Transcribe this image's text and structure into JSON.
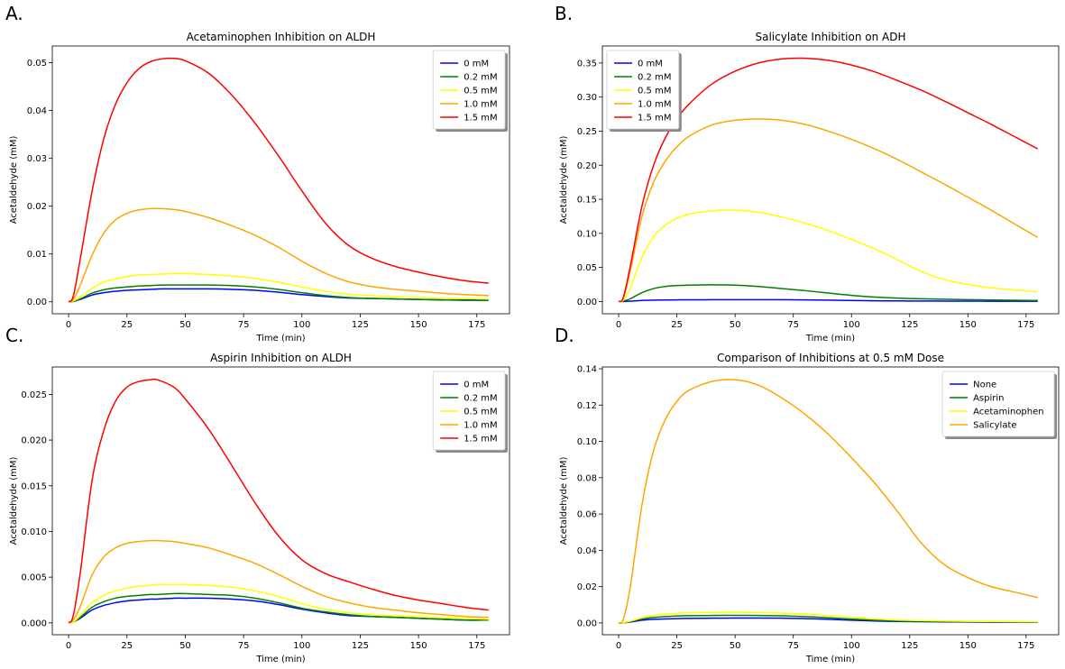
{
  "chart_data": [
    {
      "panel_label": "A.",
      "type": "line",
      "title": "Acetaminophen Inhibition on ALDH",
      "xlabel": "Time (min)",
      "ylabel": "Acetaldehyde (mM)",
      "xlim": [
        -7,
        189
      ],
      "ylim": [
        -0.0025,
        0.0535
      ],
      "xticks": [
        0,
        25,
        50,
        75,
        100,
        125,
        150,
        175
      ],
      "yticks": [
        0.0,
        0.01,
        0.02,
        0.03,
        0.04,
        0.05
      ],
      "ytick_labels": [
        "0.00",
        "0.01",
        "0.02",
        "0.03",
        "0.04",
        "0.05"
      ],
      "legend_loc": "upper right",
      "x": [
        0,
        2,
        5,
        10,
        15,
        20,
        25,
        30,
        35,
        40,
        45,
        50,
        60,
        70,
        80,
        90,
        100,
        110,
        120,
        130,
        140,
        150,
        160,
        170,
        180
      ],
      "series": [
        {
          "name": "0 mM",
          "color": "#0000ff",
          "values": [
            0,
            0.0001,
            0.0005,
            0.0014,
            0.0019,
            0.0022,
            0.0024,
            0.0025,
            0.0026,
            0.0027,
            0.0027,
            0.0027,
            0.0027,
            0.0026,
            0.0024,
            0.002,
            0.0015,
            0.0011,
            0.0008,
            0.0007,
            0.0006,
            0.0005,
            0.0004,
            0.0004,
            0.0003
          ]
        },
        {
          "name": "0.2 mM",
          "color": "#008000",
          "values": [
            0,
            0.0001,
            0.0006,
            0.0018,
            0.0025,
            0.0029,
            0.0031,
            0.0033,
            0.0034,
            0.0035,
            0.0035,
            0.0035,
            0.0035,
            0.0034,
            0.0031,
            0.0026,
            0.0019,
            0.0013,
            0.0009,
            0.0007,
            0.0006,
            0.0005,
            0.0004,
            0.0003,
            0.0003
          ]
        },
        {
          "name": "0.5 mM",
          "color": "#ffff00",
          "values": [
            0,
            0.0002,
            0.001,
            0.0028,
            0.0041,
            0.0048,
            0.0053,
            0.0056,
            0.0057,
            0.0058,
            0.0059,
            0.0059,
            0.0057,
            0.0054,
            0.0049,
            0.0041,
            0.0031,
            0.0022,
            0.0016,
            0.0013,
            0.0011,
            0.0009,
            0.0008,
            0.0007,
            0.0006
          ]
        },
        {
          "name": "1.0 mM",
          "color": "#ffa500",
          "values": [
            0,
            0.0005,
            0.0035,
            0.0097,
            0.0143,
            0.0171,
            0.0185,
            0.0192,
            0.0195,
            0.0195,
            0.0193,
            0.0189,
            0.0176,
            0.0159,
            0.0139,
            0.0114,
            0.0085,
            0.006,
            0.0042,
            0.0032,
            0.0026,
            0.0022,
            0.0018,
            0.0015,
            0.0013
          ]
        },
        {
          "name": "1.5 mM",
          "color": "#ff0000",
          "values": [
            0,
            0.0012,
            0.009,
            0.023,
            0.034,
            0.0412,
            0.0458,
            0.0487,
            0.0502,
            0.0508,
            0.0509,
            0.0504,
            0.0478,
            0.0432,
            0.0373,
            0.0305,
            0.0232,
            0.0165,
            0.0118,
            0.0091,
            0.0074,
            0.0062,
            0.0052,
            0.0044,
            0.0039
          ]
        }
      ]
    },
    {
      "panel_label": "B.",
      "type": "line",
      "title": "Salicylate Inhibition on ADH",
      "xlabel": "Time (min)",
      "ylabel": "Acetaldehyde (mM)",
      "xlim": [
        -7,
        189
      ],
      "ylim": [
        -0.018,
        0.375
      ],
      "xticks": [
        0,
        25,
        50,
        75,
        100,
        125,
        150,
        175
      ],
      "yticks": [
        0.0,
        0.05,
        0.1,
        0.15,
        0.2,
        0.25,
        0.3,
        0.35
      ],
      "ytick_labels": [
        "0.00",
        "0.05",
        "0.10",
        "0.15",
        "0.20",
        "0.25",
        "0.30",
        "0.35"
      ],
      "legend_loc": "upper left",
      "x": [
        0,
        2,
        5,
        10,
        15,
        20,
        25,
        30,
        40,
        50,
        60,
        70,
        80,
        90,
        100,
        110,
        120,
        130,
        140,
        150,
        160,
        170,
        180
      ],
      "series": [
        {
          "name": "0 mM",
          "color": "#0000ff",
          "values": [
            0,
            0,
            0.0005,
            0.0015,
            0.002,
            0.0022,
            0.0024,
            0.0025,
            0.0026,
            0.0027,
            0.0027,
            0.0026,
            0.0024,
            0.002,
            0.0015,
            0.0011,
            0.0008,
            0.0007,
            0.0006,
            0.0005,
            0.0004,
            0.0004,
            0.0003
          ]
        },
        {
          "name": "0.2 mM",
          "color": "#008000",
          "values": [
            0,
            0.0005,
            0.004,
            0.013,
            0.019,
            0.022,
            0.0235,
            0.024,
            0.0245,
            0.024,
            0.022,
            0.019,
            0.016,
            0.0125,
            0.009,
            0.0065,
            0.005,
            0.004,
            0.0033,
            0.0027,
            0.0022,
            0.0018,
            0.0015
          ]
        },
        {
          "name": "0.5 mM",
          "color": "#ffff00",
          "values": [
            0,
            0.002,
            0.02,
            0.065,
            0.095,
            0.112,
            0.122,
            0.128,
            0.133,
            0.134,
            0.131,
            0.124,
            0.115,
            0.104,
            0.091,
            0.077,
            0.061,
            0.044,
            0.032,
            0.025,
            0.02,
            0.017,
            0.014
          ]
        },
        {
          "name": "1.0 mM",
          "color": "#ffa500",
          "values": [
            0,
            0.005,
            0.045,
            0.125,
            0.175,
            0.206,
            0.227,
            0.242,
            0.259,
            0.266,
            0.268,
            0.266,
            0.26,
            0.25,
            0.238,
            0.224,
            0.208,
            0.19,
            0.172,
            0.153,
            0.134,
            0.114,
            0.094
          ]
        },
        {
          "name": "1.5 mM",
          "color": "#ff0000",
          "values": [
            0,
            0.006,
            0.052,
            0.14,
            0.2,
            0.24,
            0.268,
            0.289,
            0.319,
            0.338,
            0.35,
            0.356,
            0.357,
            0.354,
            0.347,
            0.337,
            0.324,
            0.31,
            0.294,
            0.277,
            0.26,
            0.242,
            0.224
          ]
        }
      ]
    },
    {
      "panel_label": "C.",
      "type": "line",
      "title": "Aspirin Inhibition on ALDH",
      "xlabel": "Time (min)",
      "ylabel": "Acetaldehyde (mM)",
      "xlim": [
        -7,
        189
      ],
      "ylim": [
        -0.0013,
        0.028
      ],
      "xticks": [
        0,
        25,
        50,
        75,
        100,
        125,
        150,
        175
      ],
      "yticks": [
        0.0,
        0.005,
        0.01,
        0.015,
        0.02,
        0.025
      ],
      "ytick_labels": [
        "0.000",
        "0.005",
        "0.010",
        "0.015",
        "0.020",
        "0.025"
      ],
      "legend_loc": "upper right",
      "x": [
        0,
        2,
        5,
        10,
        15,
        20,
        25,
        30,
        35,
        38,
        45,
        50,
        60,
        70,
        80,
        90,
        100,
        110,
        120,
        130,
        140,
        150,
        160,
        170,
        180
      ],
      "series": [
        {
          "name": "0 mM",
          "color": "#0000ff",
          "values": [
            0,
            0.0001,
            0.0005,
            0.0014,
            0.0019,
            0.0022,
            0.0024,
            0.0025,
            0.0026,
            0.0026,
            0.0027,
            0.0027,
            0.0027,
            0.0026,
            0.0024,
            0.002,
            0.0015,
            0.0011,
            0.0008,
            0.0007,
            0.0006,
            0.0005,
            0.0004,
            0.0003,
            0.0003
          ]
        },
        {
          "name": "0.2 mM",
          "color": "#008000",
          "values": [
            0,
            0.0001,
            0.0006,
            0.0017,
            0.0023,
            0.0027,
            0.0029,
            0.003,
            0.0031,
            0.0031,
            0.0032,
            0.0032,
            0.0031,
            0.003,
            0.0027,
            0.0022,
            0.0016,
            0.0012,
            0.0009,
            0.0007,
            0.0006,
            0.0005,
            0.0004,
            0.0003,
            0.0003
          ]
        },
        {
          "name": "0.5 mM",
          "color": "#ffff00",
          "values": [
            0,
            0.0001,
            0.0008,
            0.0022,
            0.003,
            0.0035,
            0.0038,
            0.004,
            0.0041,
            0.0042,
            0.0042,
            0.0042,
            0.0041,
            0.0039,
            0.0035,
            0.0029,
            0.0021,
            0.0015,
            0.0011,
            0.0009,
            0.0008,
            0.0007,
            0.0006,
            0.0005,
            0.0004
          ]
        },
        {
          "name": "1.0 mM",
          "color": "#ffa500",
          "values": [
            0,
            0.0003,
            0.0018,
            0.0052,
            0.0072,
            0.0082,
            0.0087,
            0.0089,
            0.009,
            0.009,
            0.0089,
            0.0087,
            0.0082,
            0.0074,
            0.0065,
            0.0053,
            0.004,
            0.0029,
            0.0022,
            0.0017,
            0.0014,
            0.0011,
            0.0009,
            0.0007,
            0.0006
          ]
        },
        {
          "name": "1.5 mM",
          "color": "#ff0000",
          "values": [
            0,
            0.0008,
            0.0055,
            0.0155,
            0.021,
            0.0242,
            0.0258,
            0.0264,
            0.0266,
            0.0266,
            0.0258,
            0.0245,
            0.0212,
            0.0172,
            0.0131,
            0.0095,
            0.0069,
            0.0054,
            0.0045,
            0.0037,
            0.003,
            0.0025,
            0.0021,
            0.0017,
            0.0014
          ]
        }
      ]
    },
    {
      "panel_label": "D.",
      "type": "line",
      "title": "Comparison of Inhibitions at 0.5 mM Dose",
      "xlabel": "Time (min)",
      "ylabel": "Acetaldehyde (mM)",
      "xlim": [
        -7,
        189
      ],
      "ylim": [
        -0.0065,
        0.141
      ],
      "xticks": [
        0,
        25,
        50,
        75,
        100,
        125,
        150,
        175
      ],
      "yticks": [
        0.0,
        0.02,
        0.04,
        0.06,
        0.08,
        0.1,
        0.12,
        0.14
      ],
      "ytick_labels": [
        "0.00",
        "0.02",
        "0.04",
        "0.06",
        "0.08",
        "0.10",
        "0.12",
        "0.14"
      ],
      "legend_loc": "upper right",
      "x": [
        0,
        2,
        5,
        10,
        15,
        20,
        25,
        30,
        40,
        50,
        60,
        70,
        80,
        90,
        100,
        110,
        120,
        130,
        140,
        150,
        160,
        170,
        180
      ],
      "series": [
        {
          "name": "None",
          "color": "#0000ff",
          "values": [
            0,
            0.0001,
            0.0005,
            0.0015,
            0.002,
            0.0022,
            0.0024,
            0.0025,
            0.0026,
            0.0027,
            0.0027,
            0.0026,
            0.0024,
            0.002,
            0.0015,
            0.0011,
            0.0008,
            0.0007,
            0.0006,
            0.0005,
            0.0004,
            0.0004,
            0.0003
          ]
        },
        {
          "name": "Aspirin",
          "color": "#008000",
          "values": [
            0,
            0.0001,
            0.0008,
            0.0022,
            0.003,
            0.0035,
            0.0038,
            0.004,
            0.0041,
            0.0042,
            0.0041,
            0.0039,
            0.0035,
            0.0029,
            0.0021,
            0.0015,
            0.0011,
            0.0009,
            0.0008,
            0.0007,
            0.0006,
            0.0005,
            0.0004
          ]
        },
        {
          "name": "Acetaminophen",
          "color": "#ffff00",
          "values": [
            0,
            0.0002,
            0.001,
            0.0028,
            0.0041,
            0.0048,
            0.0053,
            0.0056,
            0.0058,
            0.0059,
            0.0057,
            0.0054,
            0.0049,
            0.0041,
            0.0031,
            0.0022,
            0.0016,
            0.0013,
            0.0011,
            0.0009,
            0.0008,
            0.0007,
            0.0006
          ]
        },
        {
          "name": "Salicylate",
          "color": "#ffa500",
          "values": [
            0,
            0.002,
            0.02,
            0.065,
            0.095,
            0.112,
            0.122,
            0.128,
            0.133,
            0.134,
            0.131,
            0.124,
            0.115,
            0.104,
            0.091,
            0.077,
            0.061,
            0.044,
            0.032,
            0.025,
            0.02,
            0.017,
            0.014
          ]
        }
      ]
    }
  ]
}
